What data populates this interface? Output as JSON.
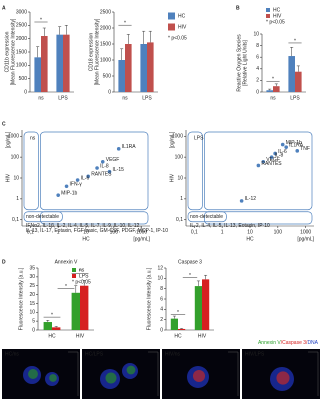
{
  "chart_data": [
    {
      "type": "bar",
      "panel": "A",
      "ylabel": [
        "CD11b expression",
        "[Mean Fluorescence Intensity]"
      ],
      "categories": [
        "ns",
        "LPS"
      ],
      "series": [
        {
          "name": "HC",
          "color": "#4f81bd",
          "values": [
            1300,
            2150
          ],
          "errors": [
            400,
            300
          ]
        },
        {
          "name": "HIV",
          "color": "#c0504d",
          "values": [
            2100,
            2150
          ],
          "errors": [
            300,
            350
          ]
        }
      ],
      "ylim": [
        0,
        3000
      ],
      "yticks": [
        0,
        500,
        1000,
        1500,
        2000,
        2500,
        3000
      ],
      "annotations": [
        "*"
      ]
    },
    {
      "type": "bar",
      "ylabel": [
        "CD18 expression",
        "[Mean Fluorescence Intensity]"
      ],
      "categories": [
        "ns",
        "LPS"
      ],
      "series": [
        {
          "name": "HC",
          "color": "#4f81bd",
          "values": [
            1000,
            1500
          ],
          "errors": [
            350,
            400
          ]
        },
        {
          "name": "HIV",
          "color": "#c0504d",
          "values": [
            1500,
            1550
          ],
          "errors": [
            300,
            350
          ]
        }
      ],
      "ylim": [
        0,
        2500
      ],
      "yticks": [
        0,
        500,
        1000,
        1500,
        2000,
        2500
      ],
      "legend": "outside-right",
      "legend_note": "* p<0.05",
      "annotations": [
        "*"
      ]
    },
    {
      "type": "bar",
      "panel": "B",
      "ylabel": [
        "Reactive Oxygen Species",
        "[Relative Light Units]"
      ],
      "categories": [
        "ns",
        "LPS"
      ],
      "series": [
        {
          "name": "HC",
          "color": "#4f81bd",
          "values": [
            0.3,
            6.2
          ],
          "errors": [
            0.2,
            1.5
          ]
        },
        {
          "name": "HIV",
          "color": "#c0504d",
          "values": [
            1.0,
            3.5
          ],
          "errors": [
            0.4,
            1.0
          ]
        }
      ],
      "ylim": [
        0,
        10
      ],
      "yticks": [
        0,
        2,
        4,
        6,
        8,
        10
      ],
      "legend": "top",
      "legend_note": "* p<0.05",
      "annotations": [
        "*",
        "*"
      ]
    },
    {
      "type": "scatter",
      "panel": "C",
      "title": "ns",
      "xlabel": "HC",
      "ylabel": "HIV",
      "unit": "[pg/mL]",
      "log": true,
      "color": "#4f81bd",
      "x": [
        150,
        40,
        25,
        70,
        12,
        5,
        2,
        1
      ],
      "y": [
        250,
        60,
        30,
        20,
        12,
        8,
        4,
        1.5
      ],
      "labels": [
        "IL1RA",
        "VEGF",
        "IL-8",
        "IL-15",
        "RANTES",
        "IL-6",
        "IFN-γ",
        "MIP-1b"
      ],
      "xlim": [
        0.05,
        2000
      ],
      "ylim": [
        0.05,
        2000
      ],
      "xticks": [
        {
          "value": 0.1,
          "label": "0,1"
        },
        1,
        10,
        100,
        1000
      ],
      "yticks": [
        {
          "value": 0.1,
          "label": "0,1"
        },
        1,
        10,
        100,
        1000
      ],
      "region_label": "non-detectable",
      "footnote": [
        "IFNα2, IL-1β, IL-2, IL-4, IL-5, IL-7, IL-9, IL-10, IL-12,",
        "IL-13, IL-17, Eotaxin, FGF basic, GM-CSF, PDGF, MCP-1, IP-10"
      ]
    },
    {
      "type": "scatter",
      "title": "LPS",
      "xlabel": "HC",
      "ylabel": "HIV",
      "unit": "[pg/mL]",
      "log": true,
      "color": "#4f81bd",
      "x": [
        150,
        500,
        200,
        80,
        60,
        30,
        20,
        5
      ],
      "y": [
        400,
        200,
        300,
        150,
        100,
        60,
        40,
        0.8
      ],
      "labels": [
        "MIP-1b",
        "TNF",
        "IL1RA",
        "IL-6",
        "IL-8",
        "VEGF",
        "RANTES",
        "IL-12"
      ],
      "xlim": [
        0.05,
        2000
      ],
      "ylim": [
        0.05,
        2000
      ],
      "xticks": [
        {
          "value": 0.1,
          "label": "0,1"
        },
        1,
        10,
        100,
        1000
      ],
      "yticks": [
        {
          "value": 0.1,
          "label": "0,1"
        },
        1,
        10,
        100,
        1000
      ],
      "region_label": "non-detectable",
      "footnote": [
        "IL-2, IL-4, IL-5, IL-13, Eotaxin, IP-10"
      ]
    },
    {
      "type": "bar",
      "panel": "D",
      "title": "Annexin V",
      "ylabel": [
        "Fluorescence Intensity [a.u.]"
      ],
      "categories": [
        "HC",
        "HIV"
      ],
      "series": [
        {
          "name": "ns",
          "color": "#33a02c",
          "values": [
            4.5,
            21
          ],
          "errors": [
            1,
            4
          ]
        },
        {
          "name": "LPS",
          "color": "#d62020",
          "values": [
            1.5,
            25
          ],
          "errors": [
            0.5,
            3
          ]
        }
      ],
      "ylim": [
        0,
        35
      ],
      "yticks": [
        0,
        5,
        10,
        15,
        20,
        25,
        30,
        35
      ],
      "legend": "top-right",
      "legend_note": "* p<0.05",
      "annotations": [
        "*",
        "*",
        "*"
      ]
    },
    {
      "type": "bar",
      "title": "Caspase 3",
      "ylabel": [
        "Fluorescence Intensity [a.u.]"
      ],
      "categories": [
        "HC",
        "HIV"
      ],
      "series": [
        {
          "name": "ns",
          "color": "#33a02c",
          "values": [
            2.2,
            8.5
          ],
          "errors": [
            0.5,
            1
          ]
        },
        {
          "name": "LPS",
          "color": "#d62020",
          "values": [
            0.2,
            9.8
          ],
          "errors": [
            0.1,
            0.8
          ]
        }
      ],
      "ylim": [
        0,
        12
      ],
      "yticks": [
        0,
        2,
        4,
        6,
        8,
        10,
        12
      ],
      "annotations": [
        "*",
        "*"
      ]
    }
  ],
  "panel_e": {
    "title_parts": [
      {
        "text": "Annexin V",
        "color": "#2ca02c"
      },
      {
        "text": "/Caspase 3/",
        "color": "#d62020"
      },
      {
        "text": "DNA",
        "color": "#2040c0"
      }
    ],
    "images": [
      "HC/ns",
      "HC/LPS",
      "HIV/ns",
      "HIV/LPS"
    ]
  }
}
